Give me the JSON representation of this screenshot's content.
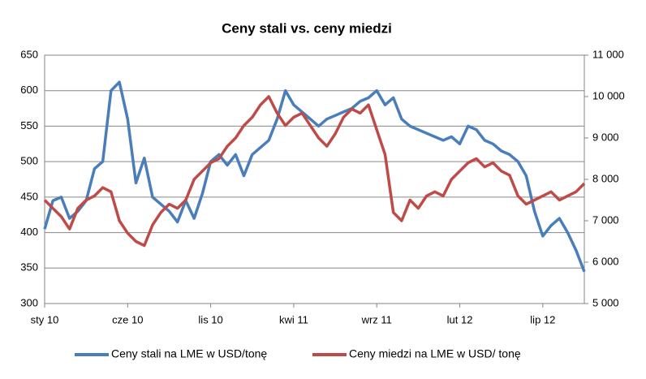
{
  "chart_data": {
    "type": "line",
    "title": "Ceny stali vs. ceny miedzi",
    "categories": [
      "sty 10",
      null,
      null,
      null,
      null,
      null,
      null,
      null,
      null,
      null,
      "cze 10",
      null,
      null,
      null,
      null,
      null,
      null,
      null,
      null,
      null,
      "lis 10",
      null,
      null,
      null,
      null,
      null,
      null,
      null,
      null,
      null,
      "kwi 11",
      null,
      null,
      null,
      null,
      null,
      null,
      null,
      null,
      null,
      "wrz 11",
      null,
      null,
      null,
      null,
      null,
      null,
      null,
      null,
      null,
      "lut 12",
      null,
      null,
      null,
      null,
      null,
      null,
      null,
      null,
      null,
      "lip 12",
      null,
      null,
      null,
      null,
      null
    ],
    "series": [
      {
        "name": "Ceny stali na LME w USD/tonę",
        "color": "#4a7ebb",
        "axis": "y",
        "values": [
          405,
          445,
          450,
          420,
          430,
          445,
          490,
          500,
          600,
          612,
          560,
          470,
          505,
          450,
          440,
          430,
          415,
          445,
          420,
          455,
          500,
          510,
          495,
          510,
          480,
          510,
          520,
          530,
          560,
          600,
          580,
          570,
          560,
          550,
          560,
          565,
          570,
          575,
          585,
          590,
          600,
          580,
          590,
          560,
          550,
          545,
          540,
          535,
          530,
          535,
          525,
          550,
          545,
          530,
          525,
          515,
          510,
          500,
          480,
          430,
          395,
          410,
          420,
          400,
          375,
          345
        ]
      },
      {
        "name": "Ceny miedzi na LME w USD/ tonę",
        "color": "#be4b48",
        "axis": "y2",
        "values": [
          7500,
          7300,
          7100,
          6800,
          7300,
          7500,
          7600,
          7800,
          7700,
          7000,
          6700,
          6500,
          6400,
          6900,
          7200,
          7400,
          7300,
          7500,
          8000,
          8200,
          8400,
          8500,
          8800,
          9000,
          9300,
          9500,
          9800,
          10000,
          9600,
          9300,
          9500,
          9600,
          9300,
          9000,
          8800,
          9100,
          9500,
          9700,
          9600,
          9800,
          9200,
          8600,
          7200,
          7000,
          7500,
          7300,
          7600,
          7700,
          7600,
          8000,
          8200,
          8400,
          8500,
          8300,
          8400,
          8200,
          8100,
          7600,
          7400,
          7500,
          7600,
          7700,
          7500,
          7600,
          7700,
          7900
        ]
      }
    ],
    "ylim": [
      300,
      650
    ],
    "yticks": [
      300,
      350,
      400,
      450,
      500,
      550,
      600,
      650
    ],
    "y2lim": [
      5000,
      11000
    ],
    "y2ticks": [
      {
        "value": 5000,
        "label": "5 000"
      },
      {
        "value": 6000,
        "label": "6 000"
      },
      {
        "value": 7000,
        "label": "7 000"
      },
      {
        "value": 8000,
        "label": "8 000"
      },
      {
        "value": 9000,
        "label": "9 000"
      },
      {
        "value": 10000,
        "label": "10 000"
      },
      {
        "value": 11000,
        "label": "11 000"
      }
    ],
    "grid": true
  }
}
